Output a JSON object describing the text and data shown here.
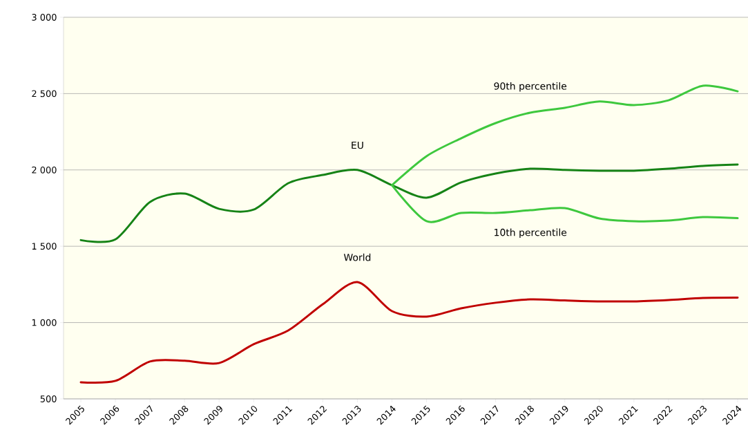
{
  "chart_data": {
    "type": "line",
    "categories": [
      "2005",
      "2006",
      "2007",
      "2008",
      "2009",
      "2010",
      "2011",
      "2012",
      "2013",
      "2014",
      "2015",
      "2016",
      "2017",
      "2018",
      "2019",
      "2020",
      "2021",
      "2022",
      "2023",
      "2024"
    ],
    "series": [
      {
        "name": "EU",
        "color": "#168316",
        "values": [
          1540,
          1545,
          1790,
          1845,
          1745,
          1740,
          1913,
          1967,
          2000,
          1900,
          1818,
          1918,
          1976,
          2008,
          2000,
          1995,
          1995,
          2008,
          2026,
          2035
        ]
      },
      {
        "name": "90th percentile",
        "color": "#3ec83e",
        "values": [
          null,
          null,
          null,
          null,
          null,
          null,
          null,
          null,
          null,
          1900,
          2090,
          2207,
          2307,
          2375,
          2407,
          2448,
          2425,
          2456,
          2552,
          2515
        ]
      },
      {
        "name": "10th percentile",
        "color": "#3ec83e",
        "values": [
          null,
          null,
          null,
          null,
          null,
          null,
          null,
          null,
          null,
          1900,
          1664,
          1718,
          1718,
          1736,
          1750,
          1682,
          1664,
          1668,
          1691,
          1684
        ]
      },
      {
        "name": "World",
        "color": "#c00000",
        "values": [
          609,
          618,
          745,
          750,
          735,
          858,
          948,
          1120,
          1265,
          1075,
          1039,
          1093,
          1130,
          1152,
          1145,
          1139,
          1139,
          1148,
          1161,
          1163
        ]
      }
    ],
    "ylim": [
      500,
      3000
    ],
    "yticks": [
      500,
      {
        "value": 1000,
        "label": "1 000"
      },
      {
        "value": 1500,
        "label": "1 500"
      },
      {
        "value": 2000,
        "label": "2 000"
      },
      {
        "value": 2500,
        "label": "2 500"
      },
      {
        "value": 3000,
        "label": "3 000"
      }
    ],
    "grid": "y"
  }
}
